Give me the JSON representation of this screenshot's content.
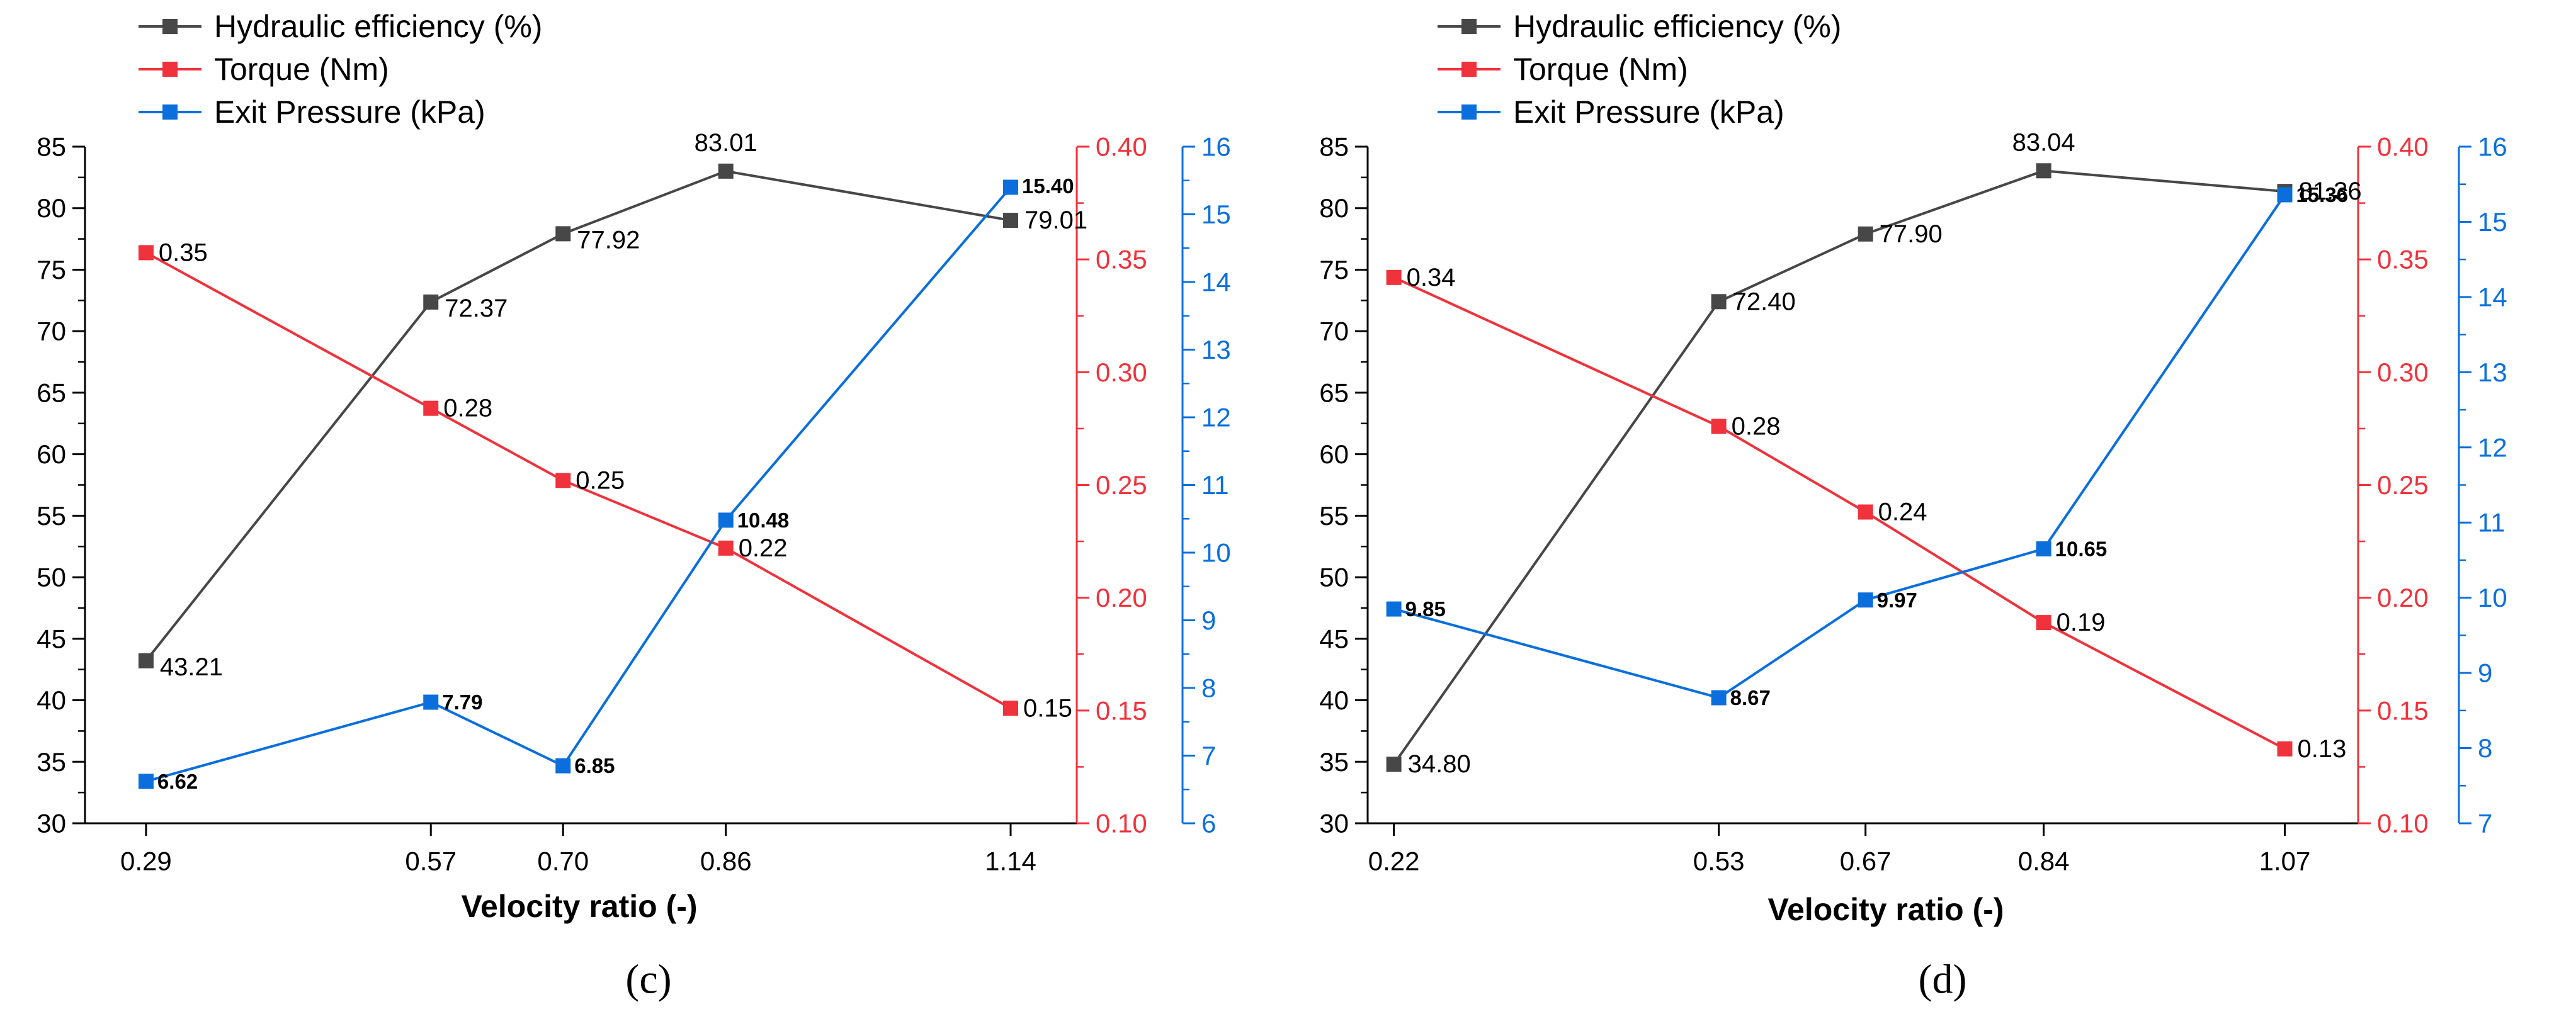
{
  "colors": {
    "efficiency": "#474747",
    "torque": "#f0323c",
    "pressure": "#0a6fdc",
    "axis": "#000000"
  },
  "chart_data": [
    {
      "type": "line",
      "panel_label": "(c)",
      "xlabel": "Velocity ratio (-)",
      "x": [
        0.29,
        0.57,
        0.7,
        0.86,
        1.14
      ],
      "x_tick_labels": [
        "0.29",
        "0.57",
        "0.70",
        "0.86",
        "1.14"
      ],
      "xlim": [
        0.23,
        1.205
      ],
      "axes": {
        "left": {
          "color_key": "efficiency",
          "ylim": [
            30,
            85
          ],
          "major": 5,
          "ticks": [
            "30",
            "35",
            "40",
            "45",
            "50",
            "55",
            "60",
            "65",
            "70",
            "75",
            "80",
            "85"
          ]
        },
        "right1": {
          "color_key": "torque",
          "ylim": [
            0.1,
            0.4
          ],
          "major": 0.05,
          "ticks": [
            "0.10",
            "0.15",
            "0.20",
            "0.25",
            "0.30",
            "0.35",
            "0.40"
          ]
        },
        "right2": {
          "color_key": "pressure",
          "ylim": [
            6,
            16
          ],
          "major": 1,
          "ticks": [
            "6",
            "7",
            "8",
            "9",
            "10",
            "11",
            "12",
            "13",
            "14",
            "15",
            "16"
          ]
        }
      },
      "series": [
        {
          "name": "Hydraulic efficiency (%)",
          "axis": "left",
          "color_key": "efficiency",
          "values": [
            43.21,
            72.37,
            77.92,
            83.01,
            79.01
          ],
          "labels": [
            "43.21",
            "72.37",
            "77.92",
            "83.01",
            "79.01"
          ]
        },
        {
          "name": "Torque (Nm)",
          "axis": "right1",
          "color_key": "torque",
          "values": [
            0.353,
            0.284,
            0.252,
            0.222,
            0.151
          ],
          "labels": [
            "0.35",
            "0.28",
            "0.25",
            "0.22",
            "0.15"
          ]
        },
        {
          "name": "Exit Pressure (kPa)",
          "axis": "right2",
          "color_key": "pressure",
          "values": [
            6.62,
            7.79,
            6.85,
            10.48,
            15.4
          ],
          "labels": [
            "6.62",
            "7.79",
            "6.85",
            "10.48",
            "15.40"
          ]
        }
      ]
    },
    {
      "type": "line",
      "panel_label": "(d)",
      "xlabel": "Velocity ratio (-)",
      "x": [
        0.22,
        0.53,
        0.67,
        0.84,
        1.07
      ],
      "x_tick_labels": [
        "0.22",
        "0.53",
        "0.67",
        "0.84",
        "1.07"
      ],
      "xlim": [
        0.195,
        1.14
      ],
      "axes": {
        "left": {
          "color_key": "efficiency",
          "ylim": [
            30,
            85
          ],
          "major": 5,
          "ticks": [
            "30",
            "35",
            "40",
            "45",
            "50",
            "55",
            "60",
            "65",
            "70",
            "75",
            "80",
            "85"
          ]
        },
        "right1": {
          "color_key": "torque",
          "ylim": [
            0.1,
            0.4
          ],
          "major": 0.05,
          "ticks": [
            "0.10",
            "0.15",
            "0.20",
            "0.25",
            "0.30",
            "0.35",
            "0.40"
          ]
        },
        "right2": {
          "color_key": "pressure",
          "ylim": [
            7,
            16
          ],
          "major": 1,
          "ticks": [
            "7",
            "8",
            "9",
            "10",
            "11",
            "12",
            "13",
            "14",
            "15",
            "16"
          ]
        }
      },
      "series": [
        {
          "name": "Hydraulic efficiency (%)",
          "axis": "left",
          "color_key": "efficiency",
          "values": [
            34.8,
            72.4,
            77.9,
            83.04,
            81.36
          ],
          "labels": [
            "34.80",
            "72.40",
            "77.90",
            "83.04",
            "81.36"
          ]
        },
        {
          "name": "Torque (Nm)",
          "axis": "right1",
          "color_key": "torque",
          "values": [
            0.342,
            0.276,
            0.238,
            0.189,
            0.133
          ],
          "labels": [
            "0.34",
            "0.28",
            "0.24",
            "0.19",
            "0.13"
          ]
        },
        {
          "name": "Exit Pressure (kPa)",
          "axis": "right2",
          "color_key": "pressure",
          "values": [
            9.85,
            8.67,
            9.97,
            10.65,
            15.36
          ],
          "labels": [
            "9.85",
            "8.67",
            "9.97",
            "10.65",
            "15.36"
          ]
        }
      ]
    }
  ]
}
